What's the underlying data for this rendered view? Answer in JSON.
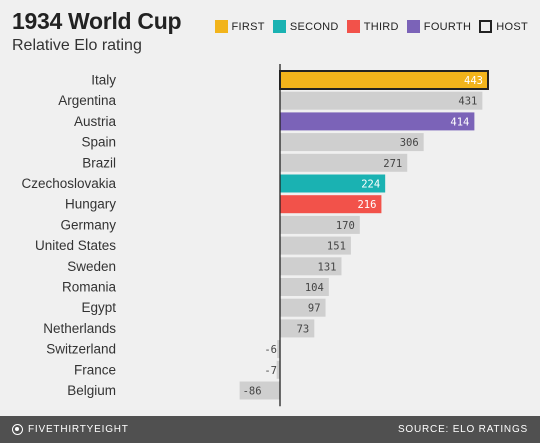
{
  "chart_data": {
    "type": "bar",
    "orientation": "horizontal",
    "title": "1934 World Cup",
    "subtitle": "Relative Elo rating",
    "categories": [
      "Italy",
      "Argentina",
      "Austria",
      "Spain",
      "Brazil",
      "Czechoslovakia",
      "Hungary",
      "Germany",
      "United States",
      "Sweden",
      "Romania",
      "Egypt",
      "Netherlands",
      "Switzerland",
      "France",
      "Belgium"
    ],
    "values": [
      443,
      431,
      414,
      306,
      271,
      224,
      216,
      170,
      151,
      131,
      104,
      97,
      73,
      -6,
      -7,
      -86
    ],
    "finish": [
      "first",
      "none",
      "fourth",
      "none",
      "none",
      "second",
      "third",
      "none",
      "none",
      "none",
      "none",
      "none",
      "none",
      "none",
      "none",
      "none"
    ],
    "host": "Italy",
    "legend": [
      {
        "key": "first",
        "label": "FIRST",
        "color": "#f2b41b"
      },
      {
        "key": "second",
        "label": "SECOND",
        "color": "#1ab2b2"
      },
      {
        "key": "third",
        "label": "THIRD",
        "color": "#f2524a"
      },
      {
        "key": "fourth",
        "label": "FOURTH",
        "color": "#7b63b8"
      },
      {
        "key": "host",
        "label": "HOST",
        "color": "#222222"
      }
    ],
    "default_color": "#cfcfcf",
    "legend_position": "top-right",
    "grid": false
  },
  "footer": {
    "brand": "FIVETHIRTYEIGHT",
    "source": "SOURCE: ELO RATINGS"
  }
}
